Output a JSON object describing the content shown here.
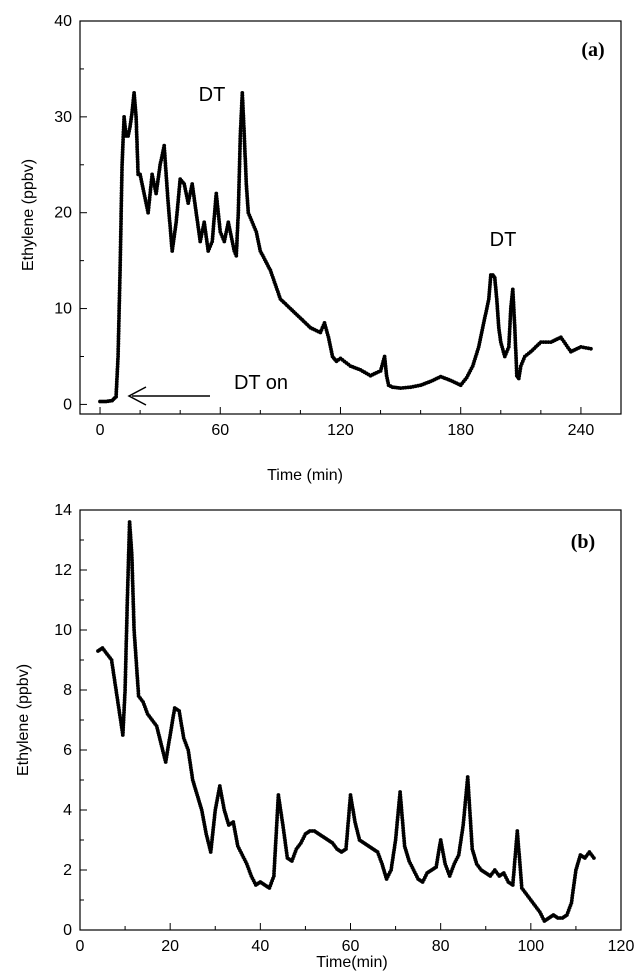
{
  "figure": {
    "panels": [
      {
        "panel_label": "(a)",
        "xlabel": "Time (min)",
        "ylabel": "Ethylene (ppbv)",
        "annotations": [
          "DT",
          "DT",
          "DT on"
        ]
      },
      {
        "panel_label": "(b)",
        "xlabel": "Time(min)",
        "ylabel": "Ethylene (ppbv)",
        "annotations": []
      }
    ]
  },
  "chart_data": [
    {
      "type": "line",
      "title": "",
      "panel_label": "(a)",
      "xlabel": "Time (min)",
      "ylabel": "Ethylene (ppbv)",
      "xlim": [
        -10,
        260
      ],
      "ylim": [
        -1,
        40
      ],
      "xticks": [
        0,
        60,
        120,
        180,
        240
      ],
      "yticks": [
        0,
        10,
        20,
        30,
        40
      ],
      "grid": false,
      "marker": "dot",
      "color": "#000000",
      "annotations": [
        {
          "text": "DT",
          "x": 63,
          "y": 35.5
        },
        {
          "text": "DT",
          "x": 204,
          "y": 17.8
        },
        {
          "text": "DT on",
          "x": 87,
          "y": 2.6,
          "arrow_from": [
            57,
            1.3
          ],
          "arrow_to": [
            19,
            1.3
          ]
        }
      ],
      "series": [
        {
          "x": [
            0,
            3,
            6,
            8,
            9,
            10,
            11,
            12,
            13,
            14,
            15,
            16,
            17,
            18,
            19,
            20,
            22,
            24,
            26,
            28,
            30,
            32,
            34,
            36,
            38,
            40,
            42,
            44,
            46,
            48,
            50,
            52,
            54,
            56,
            58,
            60,
            62,
            64,
            66,
            67,
            68,
            69,
            70,
            71,
            72,
            73,
            74,
            76,
            78,
            80,
            85,
            90,
            95,
            100,
            105,
            110,
            112,
            114,
            116,
            118,
            120,
            125,
            130,
            135,
            140,
            142,
            143,
            144,
            146,
            150,
            155,
            160,
            165,
            170,
            175,
            180,
            183,
            186,
            189,
            192,
            194,
            195,
            196,
            197,
            198,
            199,
            200,
            202,
            204,
            205,
            206,
            207,
            208,
            209,
            210,
            212,
            215,
            220,
            225,
            230,
            235,
            240,
            245
          ],
          "y": [
            0.3,
            0.3,
            0.4,
            0.8,
            5,
            14,
            25,
            30,
            28,
            28,
            29,
            30.5,
            32.5,
            30,
            24,
            24,
            22,
            20,
            24,
            22,
            25,
            27,
            21,
            16,
            19,
            23.5,
            23,
            21,
            23,
            20,
            17,
            19,
            16,
            17,
            22,
            18,
            17,
            19,
            17,
            16,
            15.5,
            20,
            28,
            32.5,
            28,
            23,
            20,
            19,
            18,
            16,
            14,
            11,
            10,
            9,
            8,
            7.5,
            8.5,
            7,
            5,
            4.5,
            4.8,
            4,
            3.6,
            3,
            3.5,
            5,
            3,
            2,
            1.8,
            1.7,
            1.8,
            2,
            2.4,
            2.9,
            2.5,
            2,
            2.8,
            4,
            6,
            9,
            11,
            13.5,
            13.5,
            13.2,
            11,
            8,
            6.5,
            5,
            6,
            10,
            12,
            8,
            3,
            2.7,
            4,
            5,
            5.5,
            6.5,
            6.5,
            7,
            5.5,
            6,
            5.8
          ]
        }
      ]
    },
    {
      "type": "line",
      "title": "",
      "panel_label": "(b)",
      "xlabel": "Time(min)",
      "ylabel": "Ethylene (ppbv)",
      "xlim": [
        0,
        120
      ],
      "ylim": [
        0,
        14
      ],
      "xticks": [
        0,
        20,
        40,
        60,
        80,
        100,
        120
      ],
      "yticks": [
        0,
        2,
        4,
        6,
        8,
        10,
        12,
        14
      ],
      "grid": false,
      "marker": "dot",
      "color": "#000000",
      "series": [
        {
          "x": [
            4,
            5,
            6,
            7,
            8,
            9,
            9.5,
            10,
            10.5,
            11,
            11.5,
            12,
            13,
            14,
            15,
            16,
            17,
            18,
            19,
            20,
            21,
            22,
            23,
            24,
            25,
            26,
            27,
            28,
            29,
            30,
            31,
            32,
            33,
            34,
            35,
            36,
            37,
            38,
            39,
            40,
            41,
            42,
            43,
            44,
            45,
            46,
            47,
            48,
            49,
            50,
            51,
            52,
            53,
            54,
            55,
            56,
            57,
            58,
            59,
            60,
            61,
            62,
            63,
            64,
            65,
            66,
            67,
            68,
            69,
            70,
            71,
            72,
            73,
            74,
            75,
            76,
            77,
            78,
            79,
            80,
            81,
            82,
            83,
            84,
            85,
            86,
            87,
            88,
            89,
            90,
            91,
            92,
            93,
            94,
            95,
            96,
            97,
            98,
            99,
            100,
            101,
            102,
            103,
            104,
            105,
            106,
            107,
            108,
            109,
            110,
            111,
            112,
            113,
            114
          ],
          "y": [
            9.3,
            9.4,
            9.2,
            9.0,
            8.0,
            7.0,
            6.5,
            8.0,
            11.0,
            13.6,
            12.5,
            10.0,
            7.8,
            7.6,
            7.2,
            7.0,
            6.8,
            6.2,
            5.6,
            6.5,
            7.4,
            7.3,
            6.4,
            6.0,
            5.0,
            4.5,
            4.0,
            3.2,
            2.6,
            4.0,
            4.8,
            4.0,
            3.5,
            3.6,
            2.8,
            2.5,
            2.2,
            1.8,
            1.5,
            1.6,
            1.5,
            1.4,
            1.8,
            4.5,
            3.5,
            2.4,
            2.3,
            2.7,
            2.9,
            3.2,
            3.3,
            3.3,
            3.2,
            3.1,
            3.0,
            2.9,
            2.7,
            2.6,
            2.7,
            4.5,
            3.6,
            3.0,
            2.9,
            2.8,
            2.7,
            2.6,
            2.2,
            1.7,
            2.0,
            3.0,
            4.6,
            2.8,
            2.3,
            2.0,
            1.7,
            1.6,
            1.9,
            2.0,
            2.1,
            3.0,
            2.2,
            1.8,
            2.2,
            2.5,
            3.5,
            5.1,
            2.7,
            2.2,
            2.0,
            1.9,
            1.8,
            2.0,
            1.8,
            1.9,
            1.6,
            1.5,
            3.3,
            1.4,
            1.2,
            1.0,
            0.8,
            0.6,
            0.3,
            0.4,
            0.5,
            0.4,
            0.4,
            0.5,
            0.9,
            2.0,
            2.5,
            2.4,
            2.6,
            2.4
          ]
        }
      ]
    }
  ]
}
